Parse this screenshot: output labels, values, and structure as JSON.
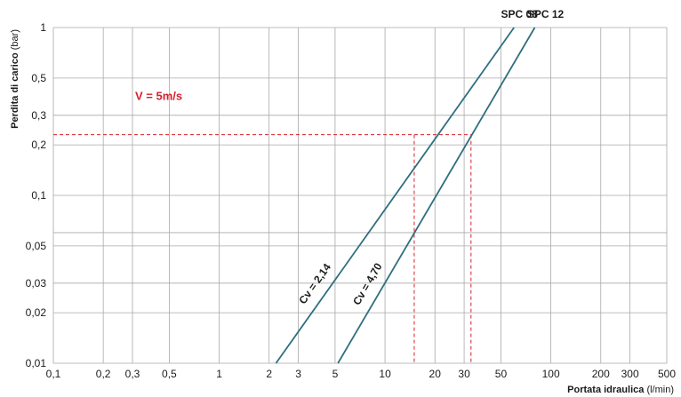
{
  "chart_data": {
    "type": "line",
    "xscale": "log",
    "yscale": "log",
    "grid": true,
    "xlim": [
      0.1,
      500
    ],
    "ylim": [
      0.01,
      1
    ],
    "x_ticks": [
      {
        "value": 0.1,
        "label": "0,1"
      },
      {
        "value": 0.2,
        "label": "0,2"
      },
      {
        "value": 0.3,
        "label": "0,3"
      },
      {
        "value": 0.5,
        "label": "0,5"
      },
      {
        "value": 1,
        "label": "1"
      },
      {
        "value": 2,
        "label": "2"
      },
      {
        "value": 3,
        "label": "3"
      },
      {
        "value": 5,
        "label": "5"
      },
      {
        "value": 10,
        "label": "10"
      },
      {
        "value": 20,
        "label": "20"
      },
      {
        "value": 30,
        "label": "30"
      },
      {
        "value": 50,
        "label": "50"
      },
      {
        "value": 100,
        "label": "100"
      },
      {
        "value": 200,
        "label": "200"
      },
      {
        "value": 300,
        "label": "300"
      },
      {
        "value": 500,
        "label": "500"
      }
    ],
    "y_ticks": [
      {
        "value": 0.01,
        "label": "0,01"
      },
      {
        "value": 0.02,
        "label": "0,02"
      },
      {
        "value": 0.03,
        "label": "0,03"
      },
      {
        "value": 0.05,
        "label": "0,05"
      },
      {
        "value": 0.1,
        "label": "0,1"
      },
      {
        "value": 0.2,
        "label": "0,2"
      },
      {
        "value": 0.3,
        "label": "0,3"
      },
      {
        "value": 0.5,
        "label": "0,5"
      },
      {
        "value": 1,
        "label": "1"
      }
    ],
    "x_grid_values": [
      0.1,
      0.2,
      0.3,
      0.5,
      1,
      2,
      3,
      5,
      10,
      20,
      30,
      50,
      100,
      200,
      300,
      500
    ],
    "y_grid_values": [
      0.01,
      0.02,
      0.03,
      0.05,
      0.06,
      0.1,
      0.2,
      0.3,
      0.5,
      1
    ],
    "xlabel_bold": "Portata idraulica",
    "xlabel_unit": "(l/min)",
    "ylabel_bold": "Perdita di carico",
    "ylabel_unit": "(bar)",
    "series": [
      {
        "name": "SPC 08",
        "cv_label": "Cv = 2,14",
        "x": [
          2.2,
          60
        ],
        "y": [
          0.01,
          1.0
        ],
        "color": "#2e6f80"
      },
      {
        "name": "SPC 12",
        "cv_label": "Cv = 4,70",
        "x": [
          5.2,
          80
        ],
        "y": [
          0.01,
          1.0
        ],
        "color": "#2e6f80"
      }
    ],
    "annotation": {
      "text": "V = 5m/s",
      "color": "#d6202a",
      "reference_y": 0.23,
      "reference_x": [
        15,
        33
      ]
    }
  }
}
